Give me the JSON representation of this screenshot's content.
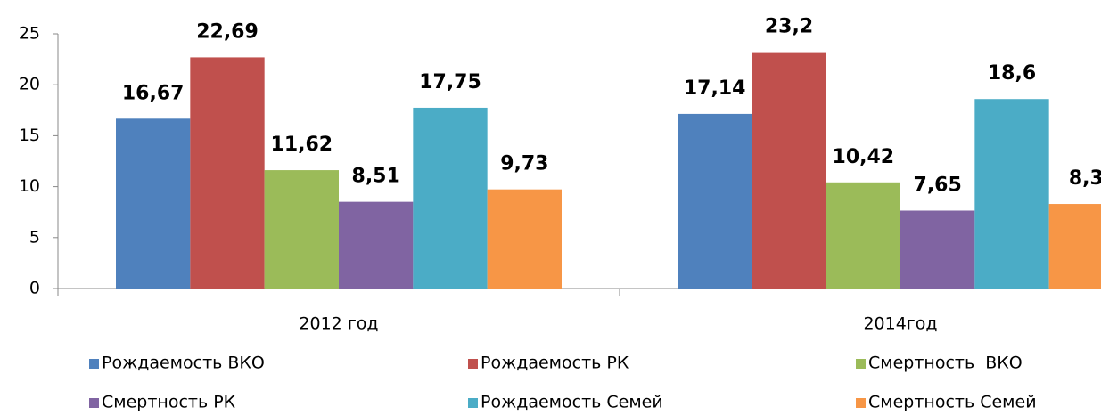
{
  "chart_data": {
    "type": "bar",
    "categories": [
      "2012 год",
      "2014год"
    ],
    "series": [
      {
        "name": "Рождаемость ВКО",
        "color": "#4f81bd",
        "values": [
          16.67,
          17.14
        ],
        "value_labels": [
          "16,67",
          "17,14"
        ]
      },
      {
        "name": "Рождаемость РК",
        "color": "#c0504d",
        "values": [
          22.69,
          23.2
        ],
        "value_labels": [
          "22,69",
          "23,2"
        ]
      },
      {
        "name": "Смертность  ВКО",
        "color": "#9bbb59",
        "values": [
          11.62,
          10.42
        ],
        "value_labels": [
          "11,62",
          "10,42"
        ]
      },
      {
        "name": "Смертность РК",
        "color": "#8064a2",
        "values": [
          8.51,
          7.65
        ],
        "value_labels": [
          "8,51",
          "7,65"
        ]
      },
      {
        "name": "Рождаемость Семей",
        "color": "#4bacc6",
        "values": [
          17.75,
          18.6
        ],
        "value_labels": [
          "17,75",
          "18,6"
        ]
      },
      {
        "name": "Смертность Семей",
        "color": "#f79646",
        "values": [
          9.73,
          8.3
        ],
        "value_labels": [
          "9,73",
          "8,3"
        ]
      }
    ],
    "ylim": [
      0,
      25
    ],
    "yticks": [
      0,
      5,
      10,
      15,
      20,
      25
    ],
    "grid": false,
    "legend": "bottom"
  }
}
